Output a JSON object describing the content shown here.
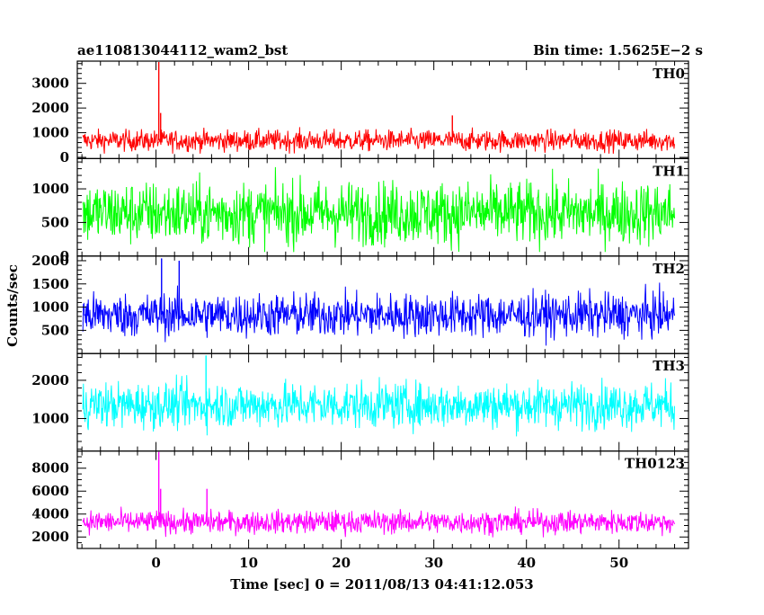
{
  "chart_data": {
    "type": "line",
    "title_left": "ae110813044112_wam2_bst",
    "title_right": "Bin time: 1.5625E−2 s",
    "ylabel": "Counts/sec",
    "xlabel": "Time [sec] 0 = 2011/08/13 04:41:12.053",
    "xlim": [
      -8.5,
      57.5
    ],
    "x_ticks": [
      0,
      10,
      20,
      30,
      40,
      50
    ],
    "x_minor_step": 2,
    "x_start": -7.9,
    "x_end": 56.0,
    "grid": false,
    "panels": [
      {
        "name": "TH0",
        "color": "#ff0000",
        "ylim": [
          -50,
          3900
        ],
        "y_ticks": [
          0,
          1000,
          2000,
          3000
        ],
        "y_minor_step": 200,
        "mean": 680,
        "spread": 300,
        "min": 150,
        "max": 1400,
        "spikes": [
          {
            "x": 0.3,
            "y": 3900
          },
          {
            "x": 0.5,
            "y": 1800
          },
          {
            "x": 32.0,
            "y": 1700
          }
        ]
      },
      {
        "name": "TH1",
        "color": "#00ff00",
        "ylim": [
          0,
          1450
        ],
        "y_ticks": [
          0,
          500,
          1000
        ],
        "y_minor_step": 100,
        "mean": 640,
        "spread": 330,
        "min": 60,
        "max": 1400,
        "spikes": []
      },
      {
        "name": "TH2",
        "color": "#0000ff",
        "ylim": [
          0,
          2100
        ],
        "y_ticks": [
          500,
          1000,
          1500,
          2000
        ],
        "y_minor_step": 100,
        "mean": 830,
        "spread": 330,
        "min": 170,
        "max": 1950,
        "spikes": [
          {
            "x": 0.6,
            "y": 2050
          },
          {
            "x": 2.5,
            "y": 2000
          }
        ]
      },
      {
        "name": "TH3",
        "color": "#00ffff",
        "ylim": [
          150,
          2700
        ],
        "y_ticks": [
          1000,
          2000
        ],
        "y_minor_step": 200,
        "mean": 1350,
        "spread": 420,
        "min": 250,
        "max": 2550,
        "spikes": [
          {
            "x": 5.4,
            "y": 2650
          }
        ]
      },
      {
        "name": "TH0123",
        "color": "#ff00ff",
        "ylim": [
          1000,
          9500
        ],
        "y_ticks": [
          2000,
          4000,
          6000,
          8000
        ],
        "y_minor_step": 500,
        "mean": 3300,
        "spread": 700,
        "min": 1500,
        "max": 5300,
        "spikes": [
          {
            "x": 0.3,
            "y": 9500
          },
          {
            "x": 0.5,
            "y": 6200
          },
          {
            "x": 5.5,
            "y": 6200
          }
        ]
      }
    ]
  }
}
